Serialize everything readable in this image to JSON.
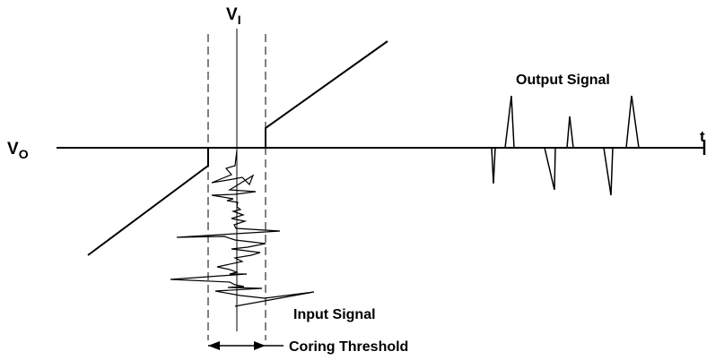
{
  "labels": {
    "vi_main": "V",
    "vi_sub": "I",
    "vo_main": "V",
    "vo_sub": "O",
    "time_axis": "t",
    "output_signal": "Output Signal",
    "input_signal": "Input Signal",
    "coring_threshold": "Coring Threshold"
  },
  "colors": {
    "stroke": "#000000",
    "background": "#ffffff"
  }
}
